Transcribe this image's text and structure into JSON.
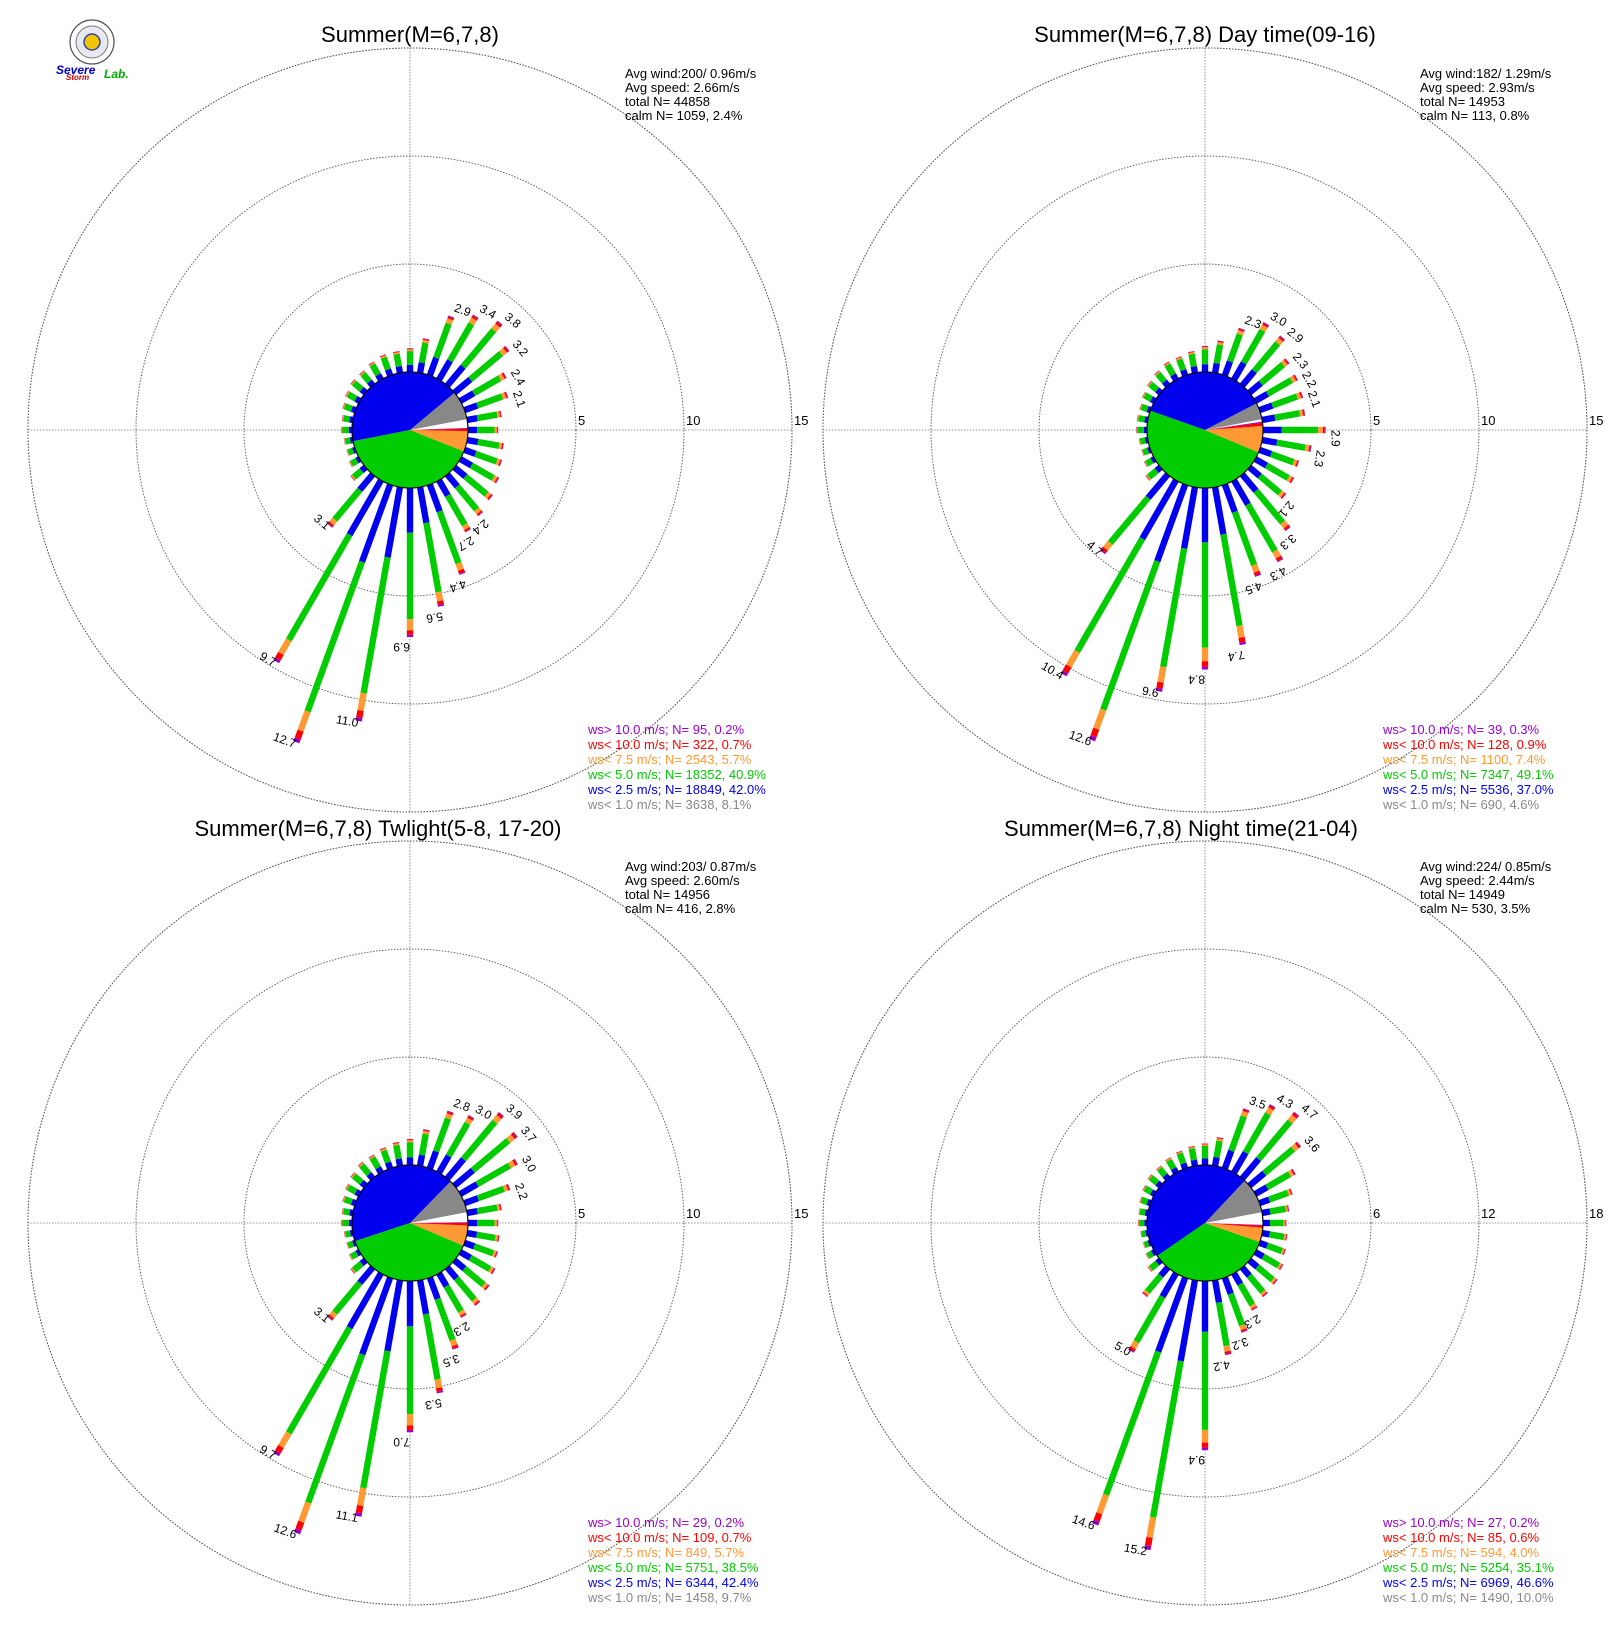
{
  "logo": {
    "line1": "Severe",
    "line2": "Storm",
    "line3": "Lab."
  },
  "colors": {
    "gt10": "#9900cc",
    "lt10": "#ff0000",
    "lt75": "#ff9933",
    "lt5": "#00cc00",
    "lt25": "#0000ee",
    "lt1": "#888888"
  },
  "chart_data": [
    {
      "type": "windrose",
      "title": "Summer(M=6,7,8)",
      "stats": {
        "avg_wind": "Avg wind:200/ 0.96m/s",
        "avg_speed": "Avg speed: 2.66m/s",
        "total_n": "total N=      44858",
        "calm_n": "calm N=    1059,   2.4%"
      },
      "ring_ticks": [
        "5",
        "10",
        "15"
      ],
      "ring_values": [
        5,
        10,
        15
      ],
      "directions_deg": [
        0,
        10,
        20,
        30,
        40,
        50,
        60,
        70,
        80,
        90,
        100,
        110,
        120,
        130,
        140,
        150,
        160,
        170,
        180,
        190,
        200,
        210,
        220,
        230,
        240,
        250,
        260,
        270,
        280,
        290,
        300,
        310,
        320,
        330,
        340,
        350
      ],
      "frequency_percent": [
        1.1,
        1.6,
        2.9,
        3.4,
        3.8,
        3.2,
        2.4,
        2.1,
        1.6,
        1.4,
        1.7,
        1.8,
        2.0,
        2.2,
        2.4,
        2.7,
        4.4,
        5.6,
        6.9,
        11.0,
        12.7,
        9.7,
        3.1,
        0.8,
        0.5,
        0.4,
        0.4,
        0.5,
        0.5,
        0.6,
        0.7,
        0.8,
        0.8,
        0.9,
        1.0,
        1.0
      ],
      "labeled_values": [
        {
          "dir": 20,
          "text": "2.9"
        },
        {
          "dir": 30,
          "text": "3.4"
        },
        {
          "dir": 40,
          "text": "3.8"
        },
        {
          "dir": 50,
          "text": "3.2"
        },
        {
          "dir": 60,
          "text": "2.4"
        },
        {
          "dir": 70,
          "text": "2.1"
        },
        {
          "dir": 140,
          "text": "2.4"
        },
        {
          "dir": 150,
          "text": "2.7"
        },
        {
          "dir": 160,
          "text": "4.4"
        },
        {
          "dir": 170,
          "text": "5.6"
        },
        {
          "dir": 180,
          "text": "6.9"
        },
        {
          "dir": 190,
          "text": "11.0"
        },
        {
          "dir": 200,
          "text": "12.7"
        },
        {
          "dir": 210,
          "text": "9.7"
        },
        {
          "dir": 220,
          "text": "3.1"
        }
      ],
      "pie_percent": {
        "lt1": 8.1,
        "lt25": 42.0,
        "lt5": 40.9,
        "lt75": 5.7,
        "lt10": 0.7,
        "gt10": 0.2
      },
      "legend": [
        {
          "text": "ws> 10.0 m/s; N=     95,  0.2%",
          "cls": "gt10"
        },
        {
          "text": "ws< 10.0 m/s; N=    322,  0.7%",
          "cls": "lt10"
        },
        {
          "text": "ws<  7.5 m/s; N=   2543,  5.7%",
          "cls": "lt75"
        },
        {
          "text": "ws<  5.0 m/s; N= 18352, 40.9%",
          "cls": "lt5"
        },
        {
          "text": "ws<  2.5 m/s; N= 18849, 42.0%",
          "cls": "lt25"
        },
        {
          "text": "ws<  1.0 m/s; N=   3638,  8.1%",
          "cls": "lt1"
        }
      ]
    },
    {
      "type": "windrose",
      "title": "Summer(M=6,7,8) Day time(09-16)",
      "stats": {
        "avg_wind": "Avg wind:182/ 1.29m/s",
        "avg_speed": "Avg speed: 2.93m/s",
        "total_n": "total N=      14953",
        "calm_n": "calm N=     113,   0.8%"
      },
      "ring_ticks": [
        "5",
        "10",
        "15"
      ],
      "ring_values": [
        5,
        10,
        15
      ],
      "directions_deg": [
        0,
        10,
        20,
        30,
        40,
        50,
        60,
        70,
        80,
        90,
        100,
        110,
        120,
        130,
        140,
        150,
        160,
        170,
        180,
        190,
        200,
        210,
        220,
        230,
        240,
        250,
        260,
        270,
        280,
        290,
        300,
        310,
        320,
        330,
        340,
        350
      ],
      "frequency_percent": [
        1.2,
        1.5,
        2.3,
        3.0,
        2.9,
        2.3,
        2.2,
        2.1,
        2.0,
        2.9,
        2.3,
        1.9,
        2.0,
        2.1,
        3.3,
        4.3,
        4.5,
        7.4,
        8.4,
        9.6,
        12.6,
        10.4,
        4.7,
        0.8,
        0.5,
        0.4,
        0.4,
        0.5,
        0.5,
        0.5,
        0.6,
        0.7,
        0.8,
        0.9,
        0.9,
        1.0
      ],
      "labeled_values": [
        {
          "dir": 20,
          "text": "2.3"
        },
        {
          "dir": 30,
          "text": "3.0"
        },
        {
          "dir": 40,
          "text": "2.9"
        },
        {
          "dir": 50,
          "text": "2.3"
        },
        {
          "dir": 60,
          "text": "2.2"
        },
        {
          "dir": 70,
          "text": "2.1"
        },
        {
          "dir": 90,
          "text": "2.9"
        },
        {
          "dir": 100,
          "text": "2.3"
        },
        {
          "dir": 130,
          "text": "2.1"
        },
        {
          "dir": 140,
          "text": "3.3"
        },
        {
          "dir": 150,
          "text": "4.3"
        },
        {
          "dir": 160,
          "text": "4.5"
        },
        {
          "dir": 170,
          "text": "7.4"
        },
        {
          "dir": 180,
          "text": "8.4"
        },
        {
          "dir": 190,
          "text": "9.6"
        },
        {
          "dir": 200,
          "text": "12.6"
        },
        {
          "dir": 210,
          "text": "10.4"
        },
        {
          "dir": 220,
          "text": "4.7"
        }
      ],
      "pie_percent": {
        "lt1": 4.6,
        "lt25": 37.0,
        "lt5": 49.1,
        "lt75": 7.4,
        "lt10": 0.9,
        "gt10": 0.3
      },
      "legend": [
        {
          "text": "ws> 10.0 m/s; N=     39,  0.3%",
          "cls": "gt10"
        },
        {
          "text": "ws< 10.0 m/s; N=    128,  0.9%",
          "cls": "lt10"
        },
        {
          "text": "ws<  7.5 m/s; N=   1100,  7.4%",
          "cls": "lt75"
        },
        {
          "text": "ws<  5.0 m/s; N=   7347, 49.1%",
          "cls": "lt5"
        },
        {
          "text": "ws<  2.5 m/s; N=   5536, 37.0%",
          "cls": "lt25"
        },
        {
          "text": "ws<  1.0 m/s; N=    690,  4.6%",
          "cls": "lt1"
        }
      ]
    },
    {
      "type": "windrose",
      "title": "Summer(M=6,7,8) Twlight(5-8, 17-20)",
      "stats": {
        "avg_wind": "Avg wind:203/ 0.87m/s",
        "avg_speed": "Avg speed: 2.60m/s",
        "total_n": "total N=      14956",
        "calm_n": "calm N=     416,   2.8%"
      },
      "ring_ticks": [
        "5",
        "10",
        "15"
      ],
      "ring_values": [
        5,
        10,
        15
      ],
      "directions_deg": [
        0,
        10,
        20,
        30,
        40,
        50,
        60,
        70,
        80,
        90,
        100,
        110,
        120,
        130,
        140,
        150,
        160,
        170,
        180,
        190,
        200,
        210,
        220,
        230,
        240,
        250,
        260,
        270,
        280,
        290,
        300,
        310,
        320,
        330,
        340,
        350
      ],
      "frequency_percent": [
        1.2,
        1.7,
        2.8,
        3.0,
        3.9,
        3.7,
        3.0,
        2.2,
        1.6,
        1.4,
        1.5,
        1.6,
        1.8,
        2.0,
        2.2,
        2.3,
        3.5,
        5.3,
        7.0,
        11.1,
        12.6,
        9.7,
        3.1,
        0.8,
        0.5,
        0.4,
        0.4,
        0.5,
        0.5,
        0.6,
        0.7,
        0.8,
        0.9,
        0.9,
        1.0,
        1.1
      ],
      "labeled_values": [
        {
          "dir": 20,
          "text": "2.8"
        },
        {
          "dir": 30,
          "text": "3.0"
        },
        {
          "dir": 40,
          "text": "3.9"
        },
        {
          "dir": 50,
          "text": "3.7"
        },
        {
          "dir": 60,
          "text": "3.0"
        },
        {
          "dir": 70,
          "text": "2.2"
        },
        {
          "dir": 150,
          "text": "2.3"
        },
        {
          "dir": 160,
          "text": "3.5"
        },
        {
          "dir": 170,
          "text": "5.3"
        },
        {
          "dir": 180,
          "text": "7.0"
        },
        {
          "dir": 190,
          "text": "11.1"
        },
        {
          "dir": 200,
          "text": "12.6"
        },
        {
          "dir": 210,
          "text": "9.7"
        },
        {
          "dir": 220,
          "text": "3.1"
        }
      ],
      "pie_percent": {
        "lt1": 9.7,
        "lt25": 42.4,
        "lt5": 38.5,
        "lt75": 5.7,
        "lt10": 0.7,
        "gt10": 0.2
      },
      "legend": [
        {
          "text": "ws> 10.0 m/s; N=     29,  0.2%",
          "cls": "gt10"
        },
        {
          "text": "ws< 10.0 m/s; N=    109,  0.7%",
          "cls": "lt10"
        },
        {
          "text": "ws<  7.5 m/s; N=    849,  5.7%",
          "cls": "lt75"
        },
        {
          "text": "ws<  5.0 m/s; N=   5751, 38.5%",
          "cls": "lt5"
        },
        {
          "text": "ws<  2.5 m/s; N=   6344, 42.4%",
          "cls": "lt25"
        },
        {
          "text": "ws<  1.0 m/s; N=   1458,  9.7%",
          "cls": "lt1"
        }
      ]
    },
    {
      "type": "windrose",
      "title": "Summer(M=6,7,8) Night time(21-04)",
      "stats": {
        "avg_wind": "Avg wind:224/ 0.85m/s",
        "avg_speed": "Avg speed: 2.44m/s",
        "total_n": "total N=      14949",
        "calm_n": "calm N=     530,   3.5%"
      },
      "ring_ticks": [
        "6",
        "12",
        "18"
      ],
      "ring_values": [
        6,
        12,
        18
      ],
      "directions_deg": [
        0,
        10,
        20,
        30,
        40,
        50,
        60,
        70,
        80,
        90,
        100,
        110,
        120,
        130,
        140,
        150,
        160,
        170,
        180,
        190,
        200,
        210,
        220,
        230,
        240,
        250,
        260,
        270,
        280,
        290,
        300,
        310,
        320,
        330,
        340,
        350
      ],
      "frequency_percent": [
        1.2,
        1.6,
        3.5,
        4.3,
        4.7,
        3.6,
        2.5,
        1.9,
        1.5,
        1.3,
        1.4,
        1.5,
        1.7,
        1.9,
        2.0,
        2.3,
        3.2,
        4.2,
        9.4,
        15.2,
        14.6,
        5.0,
        2.0,
        0.8,
        0.5,
        0.4,
        0.4,
        0.5,
        0.5,
        0.6,
        0.7,
        0.8,
        0.8,
        0.9,
        1.0,
        1.1
      ],
      "labeled_values": [
        {
          "dir": 20,
          "text": "3.5"
        },
        {
          "dir": 30,
          "text": "4.3"
        },
        {
          "dir": 40,
          "text": "4.7"
        },
        {
          "dir": 50,
          "text": "3.6"
        },
        {
          "dir": 150,
          "text": "2.3"
        },
        {
          "dir": 160,
          "text": "3.2"
        },
        {
          "dir": 170,
          "text": "4.2"
        },
        {
          "dir": 180,
          "text": "9.4"
        },
        {
          "dir": 190,
          "text": "15.2"
        },
        {
          "dir": 200,
          "text": "14.6"
        },
        {
          "dir": 210,
          "text": "5.0"
        }
      ],
      "pie_percent": {
        "lt1": 10.0,
        "lt25": 46.6,
        "lt5": 35.1,
        "lt75": 4.0,
        "lt10": 0.6,
        "gt10": 0.2
      },
      "legend": [
        {
          "text": "ws> 10.0 m/s; N=     27,  0.2%",
          "cls": "gt10"
        },
        {
          "text": "ws< 10.0 m/s; N=     85,  0.6%",
          "cls": "lt10"
        },
        {
          "text": "ws<  7.5 m/s; N=    594,  4.0%",
          "cls": "lt75"
        },
        {
          "text": "ws<  5.0 m/s; N=   5254, 35.1%",
          "cls": "lt5"
        },
        {
          "text": "ws<  2.5 m/s; N=   6969, 46.6%",
          "cls": "lt25"
        },
        {
          "text": "ws<  1.0 m/s; N=   1490, 10.0%",
          "cls": "lt1"
        }
      ]
    }
  ]
}
